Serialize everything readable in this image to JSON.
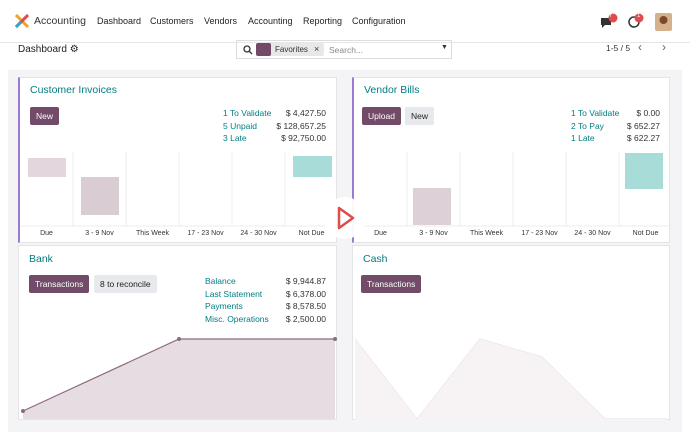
{
  "navbar": {
    "app": "Accounting",
    "menu": [
      "Dashboard",
      "Customers",
      "Vendors",
      "Accounting",
      "Reporting",
      "Configuration"
    ],
    "badges": [
      "7",
      "1"
    ]
  },
  "control_panel": {
    "breadcrumb": "Dashboard",
    "filter": "Favorites",
    "search_placeholder": "Search...",
    "pager": "1-5 / 5"
  },
  "cards": [
    {
      "title": "Customer Invoices",
      "buttons": [
        "New"
      ],
      "stats": [
        {
          "label": "1 To Validate",
          "amount": "$ 4,427.50"
        },
        {
          "label": "5 Unpaid",
          "amount": "$ 128,657.25"
        },
        {
          "label": "3 Late",
          "amount": "$ 92,750.00"
        }
      ],
      "chart_labels": [
        "Due",
        "3 - 9 Nov",
        "This Week",
        "17 - 23 Nov",
        "24 - 30 Nov",
        "Not Due"
      ]
    },
    {
      "title": "Vendor Bills",
      "buttons": [
        "Upload",
        "New"
      ],
      "stats": [
        {
          "label": "1 To Validate",
          "amount": "$ 0.00"
        },
        {
          "label": "2 To Pay",
          "amount": "$ 652.27"
        },
        {
          "label": "1 Late",
          "amount": "$ 622.27"
        }
      ],
      "chart_labels": [
        "Due",
        "3 - 9 Nov",
        "This Week",
        "17 - 23 Nov",
        "24 - 30 Nov",
        "Not Due"
      ]
    },
    {
      "title": "Bank",
      "buttons": [
        "Transactions",
        "8 to reconcile"
      ],
      "stats": [
        {
          "label": "Balance",
          "amount": "$ 9,944.87"
        },
        {
          "label": "Last Statement",
          "amount": "$ 6,378.00"
        },
        {
          "label": "Payments",
          "amount": "$ 8,578.50"
        },
        {
          "label": "Misc. Operations",
          "amount": "$ 2,500.00"
        }
      ]
    },
    {
      "title": "Cash",
      "buttons": [
        "Transactions"
      ]
    }
  ]
}
